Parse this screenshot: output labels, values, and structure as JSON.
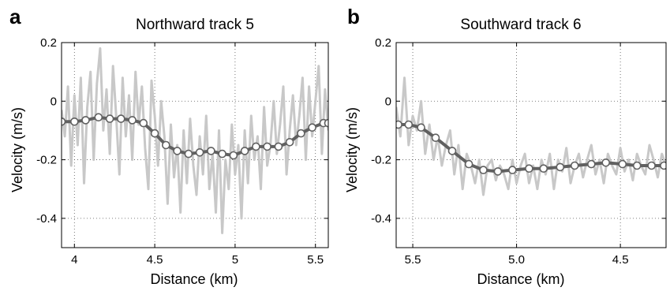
{
  "chart_data": [
    {
      "panel": "a",
      "type": "line",
      "title": "Northward track 5",
      "xlabel": "Distance (km)",
      "ylabel": "Velocity (m/s)",
      "xlim": [
        3.92,
        5.58
      ],
      "ylim": [
        -0.5,
        0.2
      ],
      "xticks": [
        4,
        4.5,
        5,
        5.5
      ],
      "xtick_labels": [
        "4",
        "4.5",
        "5",
        "5.5"
      ],
      "yticks": [
        0.2,
        0,
        -0.2,
        -0.4
      ],
      "ytick_labels": [
        "0.2",
        "0",
        "-0.2",
        "-0.4"
      ],
      "grid": "dotted",
      "raw_color": "#c8c8c8",
      "smooth_color": "#606060",
      "marker_face": "#ffffff",
      "series": [
        {
          "style": "raw",
          "x": [
            3.92,
            3.94,
            3.96,
            3.98,
            4.0,
            4.02,
            4.04,
            4.06,
            4.08,
            4.1,
            4.12,
            4.14,
            4.16,
            4.18,
            4.2,
            4.22,
            4.24,
            4.26,
            4.28,
            4.3,
            4.32,
            4.34,
            4.36,
            4.38,
            4.4,
            4.42,
            4.44,
            4.46,
            4.48,
            4.5,
            4.52,
            4.54,
            4.56,
            4.58,
            4.6,
            4.62,
            4.64,
            4.66,
            4.68,
            4.7,
            4.72,
            4.74,
            4.76,
            4.78,
            4.8,
            4.82,
            4.84,
            4.86,
            4.88,
            4.9,
            4.92,
            4.94,
            4.96,
            4.98,
            5.0,
            5.02,
            5.04,
            5.06,
            5.08,
            5.1,
            5.12,
            5.14,
            5.16,
            5.18,
            5.2,
            5.22,
            5.24,
            5.26,
            5.28,
            5.3,
            5.32,
            5.34,
            5.36,
            5.38,
            5.4,
            5.42,
            5.44,
            5.46,
            5.48,
            5.5,
            5.52,
            5.54,
            5.56,
            5.58
          ],
          "values": [
            -0.03,
            -0.12,
            0.05,
            -0.22,
            0.02,
            -0.15,
            0.08,
            -0.28,
            -0.02,
            0.1,
            -0.2,
            0.06,
            0.18,
            -0.1,
            0.04,
            -0.18,
            0.12,
            -0.05,
            -0.25,
            0.08,
            -0.12,
            0.02,
            -0.2,
            0.1,
            -0.08,
            0.05,
            -0.16,
            -0.3,
            0.07,
            -0.05,
            -0.22,
            0.0,
            -0.12,
            -0.35,
            -0.08,
            -0.26,
            -0.15,
            -0.38,
            -0.1,
            -0.28,
            -0.06,
            -0.22,
            -0.32,
            -0.12,
            -0.25,
            -0.05,
            -0.3,
            -0.18,
            -0.38,
            -0.1,
            -0.45,
            -0.2,
            -0.3,
            -0.08,
            -0.25,
            -0.15,
            -0.4,
            -0.1,
            -0.28,
            -0.05,
            -0.2,
            -0.12,
            -0.3,
            -0.02,
            -0.22,
            -0.15,
            0.0,
            -0.18,
            -0.08,
            0.05,
            -0.25,
            -0.1,
            0.02,
            -0.15,
            -0.05,
            0.08,
            -0.2,
            0.05,
            -0.12,
            0.0,
            0.12,
            -0.18,
            0.04,
            -0.1
          ]
        },
        {
          "style": "smoothed",
          "x": [
            3.92,
            4.0,
            4.07,
            4.15,
            4.22,
            4.29,
            4.36,
            4.43,
            4.5,
            4.57,
            4.64,
            4.71,
            4.78,
            4.85,
            4.92,
            4.99,
            5.06,
            5.13,
            5.2,
            5.27,
            5.34,
            5.41,
            5.48,
            5.55,
            5.58
          ],
          "values": [
            -0.07,
            -0.07,
            -0.065,
            -0.055,
            -0.06,
            -0.06,
            -0.065,
            -0.075,
            -0.11,
            -0.15,
            -0.17,
            -0.18,
            -0.175,
            -0.17,
            -0.18,
            -0.185,
            -0.17,
            -0.155,
            -0.155,
            -0.155,
            -0.14,
            -0.11,
            -0.09,
            -0.075,
            -0.075
          ]
        }
      ]
    },
    {
      "panel": "b",
      "type": "line",
      "title": "Southward track 6",
      "xlabel": "Distance (km)",
      "ylabel": "Velocity (m/s)",
      "xlim": [
        5.58,
        4.28
      ],
      "ylim": [
        -0.5,
        0.2
      ],
      "xticks": [
        5.5,
        5.0,
        4.5
      ],
      "xtick_labels": [
        "5.5",
        "5.0",
        "4.5"
      ],
      "yticks": [
        0.2,
        0,
        -0.2,
        -0.4
      ],
      "ytick_labels": [
        "0.2",
        "0",
        "-0.2",
        "-0.4"
      ],
      "grid": "dotted",
      "raw_color": "#c8c8c8",
      "smooth_color": "#606060",
      "marker_face": "#ffffff",
      "series": [
        {
          "style": "raw",
          "x": [
            5.58,
            5.56,
            5.54,
            5.52,
            5.5,
            5.48,
            5.46,
            5.44,
            5.42,
            5.4,
            5.38,
            5.36,
            5.34,
            5.32,
            5.3,
            5.28,
            5.26,
            5.24,
            5.22,
            5.2,
            5.18,
            5.16,
            5.14,
            5.12,
            5.1,
            5.08,
            5.06,
            5.04,
            5.02,
            5.0,
            4.98,
            4.96,
            4.94,
            4.92,
            4.9,
            4.88,
            4.86,
            4.84,
            4.82,
            4.8,
            4.78,
            4.76,
            4.74,
            4.72,
            4.7,
            4.68,
            4.66,
            4.64,
            4.62,
            4.6,
            4.58,
            4.56,
            4.54,
            4.52,
            4.5,
            4.48,
            4.46,
            4.44,
            4.42,
            4.4,
            4.38,
            4.36,
            4.34,
            4.32,
            4.3,
            4.28
          ],
          "values": [
            -0.02,
            -0.12,
            0.08,
            -0.15,
            -0.05,
            -0.1,
            0.0,
            -0.18,
            -0.08,
            -0.2,
            -0.12,
            -0.22,
            -0.15,
            -0.1,
            -0.25,
            -0.15,
            -0.3,
            -0.18,
            -0.22,
            -0.28,
            -0.2,
            -0.32,
            -0.22,
            -0.2,
            -0.27,
            -0.22,
            -0.25,
            -0.3,
            -0.2,
            -0.28,
            -0.22,
            -0.18,
            -0.28,
            -0.22,
            -0.3,
            -0.2,
            -0.25,
            -0.18,
            -0.3,
            -0.2,
            -0.24,
            -0.16,
            -0.28,
            -0.22,
            -0.18,
            -0.26,
            -0.2,
            -0.15,
            -0.25,
            -0.2,
            -0.28,
            -0.18,
            -0.22,
            -0.25,
            -0.16,
            -0.24,
            -0.2,
            -0.27,
            -0.18,
            -0.22,
            -0.25,
            -0.15,
            -0.2,
            -0.26,
            -0.18,
            -0.22
          ]
        },
        {
          "style": "smoothed",
          "x": [
            5.57,
            5.52,
            5.46,
            5.39,
            5.31,
            5.23,
            5.16,
            5.09,
            5.02,
            4.94,
            4.87,
            4.79,
            4.72,
            4.64,
            4.57,
            4.49,
            4.42,
            4.35,
            4.29
          ],
          "values": [
            -0.08,
            -0.08,
            -0.09,
            -0.125,
            -0.17,
            -0.215,
            -0.235,
            -0.24,
            -0.235,
            -0.23,
            -0.23,
            -0.225,
            -0.22,
            -0.215,
            -0.21,
            -0.215,
            -0.22,
            -0.22,
            -0.22
          ]
        }
      ]
    }
  ]
}
